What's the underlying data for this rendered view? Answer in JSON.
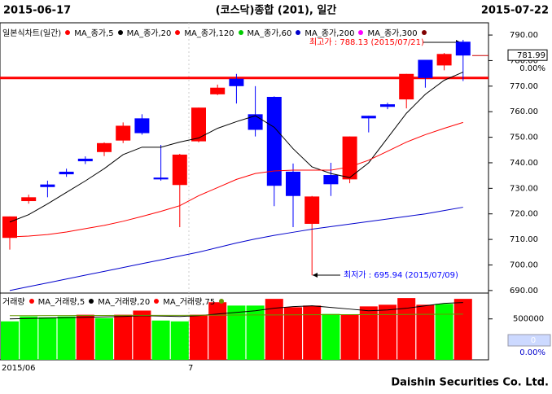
{
  "chart_data": [
    {
      "type": "candlestick",
      "title": "(코스닥)종합 (201), 일간",
      "start_date": "2015-06-17",
      "end_date": "2015-07-22",
      "legend_label": "일본식차트(일간)",
      "legend_color": "#ff0000",
      "categories": [
        "2015/06",
        null,
        null,
        null,
        null,
        null,
        null,
        null,
        null,
        null,
        "7",
        null,
        null,
        null,
        null,
        null,
        null,
        null,
        null,
        null,
        null,
        null,
        null,
        null,
        null
      ],
      "open": [
        710.6,
        725,
        731.5,
        736.5,
        741.6,
        744.2,
        748.7,
        757.4,
        734.2,
        731.3,
        748.4,
        766.8,
        772.9,
        759,
        765.8,
        736.5,
        716.1,
        735.2,
        733.5,
        758.4,
        762.9,
        764.8,
        780.3,
        778.1,
        787.4
      ],
      "high": [
        719,
        727.5,
        733,
        737.7,
        742.5,
        748,
        755.8,
        759,
        747,
        743.5,
        761.6,
        770.6,
        774.8,
        770,
        766,
        739.7,
        727,
        740,
        750.3,
        758.4,
        763.5,
        774.8,
        780.3,
        783,
        788.13
      ],
      "low": [
        706,
        724,
        726.5,
        734.5,
        739.5,
        742.6,
        747.7,
        751,
        733,
        714.8,
        748,
        766.5,
        763.2,
        750.3,
        723,
        714.8,
        695.94,
        727,
        732,
        751.9,
        761,
        761.3,
        769.4,
        776.2,
        772
      ],
      "close": [
        719,
        726.5,
        730.5,
        735.5,
        740.6,
        747.7,
        754.5,
        751.6,
        733.5,
        743.2,
        761.6,
        769.4,
        770,
        752.9,
        731,
        727,
        726.8,
        731.6,
        750.3,
        757.4,
        761.9,
        774.8,
        773.2,
        782.6,
        781.99
      ],
      "up_color": "#ff0000",
      "down_color": "#0000ff",
      "series": [
        {
          "name": "MA_종가,5",
          "color": "#000000",
          "values": [
            716.8,
            719.7,
            723.9,
            728.4,
            732.9,
            737.7,
            743.2,
            746.1,
            746.1,
            748.1,
            749.7,
            753.5,
            756.1,
            758.4,
            753.9,
            745.5,
            738.4,
            735.8,
            734.2,
            740,
            749.7,
            759.4,
            766.8,
            772.3,
            775.5
          ]
        },
        {
          "name": "MA_종가,20",
          "color": "#ff0000",
          "values": [
            711,
            711.3,
            711.9,
            712.9,
            714.2,
            715.5,
            717.1,
            719,
            721,
            723.2,
            727.1,
            730.3,
            733.5,
            735.8,
            736.8,
            737.1,
            737.1,
            737.1,
            738.4,
            741,
            744.5,
            748.1,
            751,
            753.5,
            755.8
          ]
        },
        {
          "name": "MA_종가,120",
          "color": "#00cc00"
        },
        {
          "name": "MA_종가,60",
          "color": "#0000cc",
          "values": [
            690,
            691.5,
            693,
            694.5,
            696,
            697.5,
            699,
            700.5,
            702,
            703.5,
            705,
            706.8,
            708.6,
            710.2,
            711.6,
            712.8,
            714,
            715,
            716,
            717,
            718,
            719,
            720,
            721.3,
            722.6
          ]
        },
        {
          "name": "MA_종가,200",
          "color": "#ff00ff"
        },
        {
          "name": "MA_종가,300",
          "color": "#800000"
        }
      ],
      "ylim": [
        689,
        794.8
      ],
      "yticks": [
        {
          "value": 690,
          "label": "690.00"
        },
        {
          "value": 700,
          "label": "700.00"
        },
        {
          "value": 710,
          "label": "710.00"
        },
        {
          "value": 720,
          "label": "720.00"
        },
        {
          "value": 730,
          "label": "730.00"
        },
        {
          "value": 740,
          "label": "740.00"
        },
        {
          "value": 750,
          "label": "750.00"
        },
        {
          "value": 760,
          "label": "760.00"
        },
        {
          "value": 770,
          "label": "770.00"
        },
        {
          "value": 780,
          "label": "780.00"
        },
        {
          "value": 790,
          "label": "790.00"
        }
      ],
      "hline": 773.2,
      "hline_color": "#ff0000",
      "last_price": 781.99,
      "change": "0.00%",
      "annotations": [
        {
          "text": "최고가 : 788.13 (2015/07/21)",
          "color": "#ff0000"
        },
        {
          "text": "최저가 : 695.94 (2015/07/09)",
          "color": "#0000ff"
        }
      ]
    },
    {
      "type": "bar",
      "legend_label": "거래량",
      "legend_color": "#ff0000",
      "values": [
        470000,
        530000,
        520000,
        530000,
        551000,
        510000,
        551000,
        602000,
        480000,
        470000,
        551000,
        704000,
        663000,
        663000,
        745000,
        643000,
        663000,
        561000,
        551000,
        653000,
        673000,
        755000,
        673000,
        684000,
        745000
      ],
      "colors": [
        "#00ff00",
        "#00ff00",
        "#00ff00",
        "#00ff00",
        "#ff0000",
        "#00ff00",
        "#ff0000",
        "#ff0000",
        "#00ff00",
        "#00ff00",
        "#ff0000",
        "#ff0000",
        "#00ff00",
        "#00ff00",
        "#ff0000",
        "#ff0000",
        "#ff0000",
        "#00ff00",
        "#ff0000",
        "#ff0000",
        "#ff0000",
        "#ff0000",
        "#ff0000",
        "#00ff00",
        "#ff0000"
      ],
      "series": [
        {
          "name": "MA_거래량,5",
          "color": "#000000",
          "values": [
            500000,
            505000,
            510000,
            515000,
            520000,
            525000,
            530000,
            540000,
            535000,
            530000,
            540000,
            560000,
            580000,
            600000,
            630000,
            650000,
            660000,
            640000,
            620000,
            600000,
            610000,
            630000,
            660000,
            690000,
            700000
          ]
        },
        {
          "name": "MA_거래량,20",
          "color": "#ff0000"
        },
        {
          "name": "MA_거래량,75",
          "color": "#669900",
          "values": [
            540000,
            540000,
            541000,
            541000,
            542000,
            542000,
            543000,
            543000,
            544000,
            544000,
            545000,
            546000,
            547000,
            548000,
            549000,
            550000,
            551000,
            552000,
            552000,
            553000,
            554000,
            555000,
            556000,
            557000,
            558000
          ]
        }
      ],
      "ylim": [
        0,
        796000
      ],
      "yticks": [
        500000
      ],
      "last_value": 0,
      "change": "0.00%"
    }
  ],
  "footer": "Daishin Securities Co. Ltd."
}
